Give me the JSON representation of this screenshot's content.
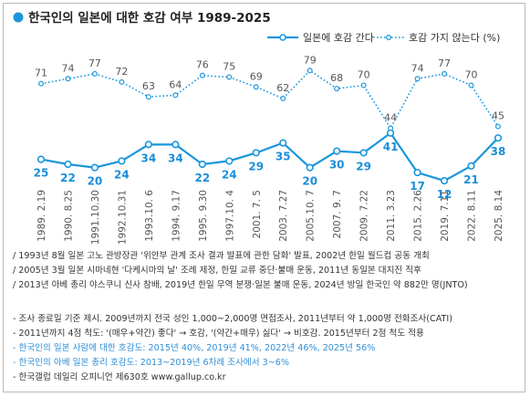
{
  "chart_data": {
    "type": "line",
    "title": "한국인의 일본에 대한 호감 여부 1989-2025",
    "categories": [
      "1989. 2.19",
      "1990. 8.25",
      "1991.10.30",
      "1992.10.31",
      "1993.10. 6",
      "1994. 9.17",
      "1995. 9.30",
      "1997.10. 4",
      "2001. 7. 5",
      "2003. 7.27",
      "2005.10. 7",
      "2007. 9. 7",
      "2009. 7.22",
      "2011. 3.23",
      "2015. 2.26",
      "2019. 7.11",
      "2022. 8.11",
      "2025. 8.14"
    ],
    "series": [
      {
        "name": "일본에 호감 간다",
        "color": "#1a96dc",
        "style": "solid",
        "values": [
          25,
          22,
          20,
          24,
          34,
          34,
          22,
          24,
          29,
          35,
          20,
          30,
          29,
          41,
          17,
          12,
          21,
          38
        ]
      },
      {
        "name": "호감 가지 않는다 (%)",
        "color": "#1a96dc",
        "style": "dotted",
        "values": [
          71,
          74,
          77,
          72,
          63,
          64,
          76,
          75,
          69,
          62,
          79,
          68,
          70,
          44,
          74,
          77,
          70,
          45
        ]
      }
    ],
    "ylim": [
      0,
      100
    ],
    "grid": false,
    "legend_position": "top-right"
  },
  "notes_events": [
    "/ 1993년 8월 일본 고노 관방장관 '위안부 관계 조사 결과 발표에 관한 담화' 발표, 2002년 한일 월드컵 공동 개최",
    "/ 2005년 3월 일본 시마네현 '다케시마의 날' 조례 제정, 한일 교류 중단·불매 운동, 2011년 동일본 대지진 직후",
    "/ 2013년 아베 총리 야스쿠니 신사 참배, 2019년 한일 무역 분쟁·일본 불매 운동, 2024년 방일 한국인 약 882만 명(JNTO)"
  ],
  "notes_method": [
    {
      "text": "- 조사 종료일 기준 제시. 2009년까지 전국 성인 1,000~2,000명 면접조사, 2011년부터 약 1,000명 전화조사(CATI)",
      "style": "dark"
    },
    {
      "text": "- 2011년까지 4점 척도: '(매우+약간) 좋다' → 호감, '(약간+매우) 싫다' → 비호감. 2015년부터 2점 척도 적용",
      "style": "dark"
    },
    {
      "text": "- 한국인의 일본 사람에 대한 호감도: 2015년 40%, 2019년 41%, 2022년 46%, 2025년 56%",
      "style": "blue"
    },
    {
      "text": "- 한국인의 아베 일본 총리 호감도: 2013~2019년 6차례 조사에서 3~6%",
      "style": "blue"
    },
    {
      "text": "- 한국갤럽 데일리 오피니언 제630호 www.gallup.co.kr",
      "style": "dark"
    }
  ]
}
